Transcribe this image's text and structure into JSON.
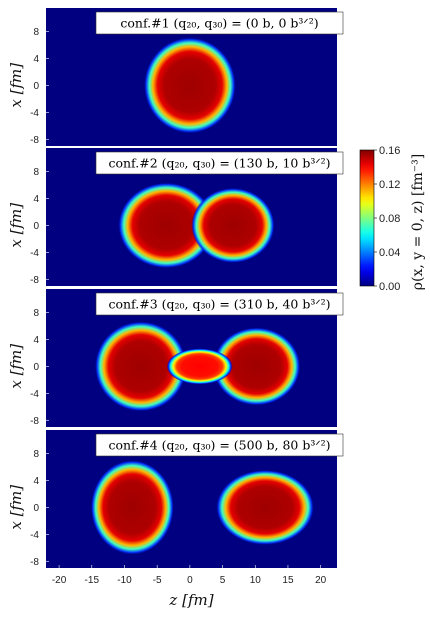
{
  "chart_data": {
    "type": "heatmap",
    "quantity_label": "ρ(x, y = 0, z) [fm⁻³]",
    "colorbar": {
      "range": [
        0.0,
        0.16
      ],
      "ticks": [
        "0.00",
        "0.04",
        "0.08",
        "0.12",
        "0.16"
      ]
    },
    "x_axis": {
      "label": "z [fm]",
      "range": [
        -22,
        22.5
      ],
      "ticks": [
        "-20",
        "-15",
        "-10",
        "-5",
        "0",
        "5",
        "10",
        "15",
        "20"
      ]
    },
    "y_axis": {
      "label": "x [fm]",
      "range": [
        -9,
        11.5
      ],
      "ticks": [
        "8",
        "4",
        "0",
        "-4",
        "-8"
      ]
    },
    "panels": [
      {
        "title": "conf.#1 (q₂₀, q₃₀) = (0 b, 0 b³ᐟ²)",
        "fragments": [
          {
            "zc": 0,
            "rz": 6.3,
            "rx": 6.4,
            "peak": 0.155
          }
        ]
      },
      {
        "title": "conf.#2 (q₂₀, q₃₀) = (130 b, 10 b³ᐟ²)",
        "fragments": [
          {
            "zc": -3.6,
            "rz": 6.6,
            "rx": 5.7,
            "peak": 0.155
          },
          {
            "zc": 6.6,
            "rz": 5.7,
            "rx": 5.0,
            "peak": 0.155
          }
        ]
      },
      {
        "title": "conf.#3 (q₂₀, q₃₀) = (310 b, 40 b³ᐟ²)",
        "fragments": [
          {
            "zc": -7.5,
            "rz": 6.3,
            "rx": 6.0,
            "peak": 0.155
          },
          {
            "zc": 10.2,
            "rz": 6.0,
            "rx": 5.2,
            "peak": 0.155
          },
          {
            "zc": 1.5,
            "rz": 4.5,
            "rx": 2.4,
            "peak": 0.14
          }
        ]
      },
      {
        "title": "conf.#4 (q₂₀, q₃₀) = (500 b, 80 b³ᐟ²)",
        "fragments": [
          {
            "zc": -8.8,
            "rz": 5.7,
            "rx": 6.3,
            "peak": 0.155
          },
          {
            "zc": 11.5,
            "rz": 6.7,
            "rx": 5.0,
            "peak": 0.155
          }
        ]
      }
    ]
  }
}
